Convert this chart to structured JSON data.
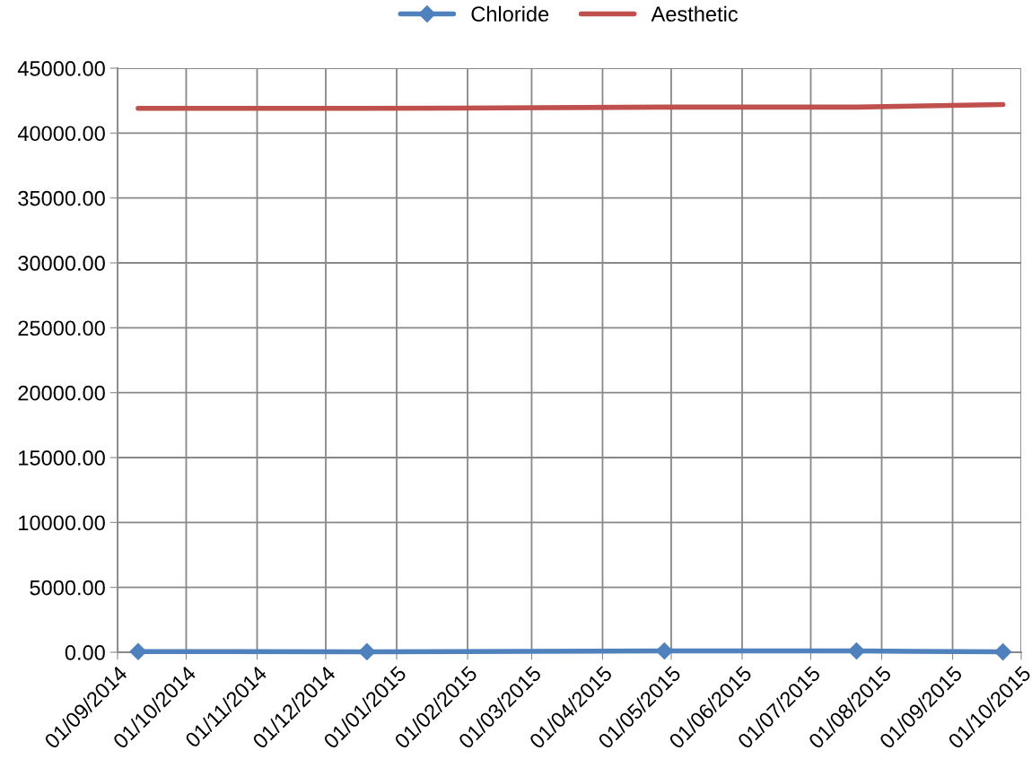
{
  "chart_data": {
    "type": "line",
    "x": [
      "2014-09-10",
      "2014-12-19",
      "2015-04-28",
      "2015-07-21",
      "2015-09-23"
    ],
    "series": [
      {
        "name": "Chloride",
        "color": "#4f81bd",
        "marker": "diamond",
        "values": [
          50,
          40,
          100,
          100,
          30
        ]
      },
      {
        "name": "Aesthetic",
        "color": "#c0504d",
        "marker": "none",
        "values": [
          41900,
          41900,
          42000,
          42000,
          42200
        ]
      }
    ],
    "ylim": [
      0,
      45000
    ],
    "yticks": [
      {
        "value": 0,
        "label": "0.00"
      },
      {
        "value": 5000,
        "label": "5000.00"
      },
      {
        "value": 10000,
        "label": "10000.00"
      },
      {
        "value": 15000,
        "label": "15000.00"
      },
      {
        "value": 20000,
        "label": "20000.00"
      },
      {
        "value": 25000,
        "label": "25000.00"
      },
      {
        "value": 30000,
        "label": "30000.00"
      },
      {
        "value": 35000,
        "label": "35000.00"
      },
      {
        "value": 40000,
        "label": "40000.00"
      },
      {
        "value": 45000,
        "label": "45000.00"
      }
    ],
    "xlim": [
      "2014-09-01",
      "2015-10-01"
    ],
    "xticks": [
      {
        "value": "2014-09-01",
        "label": "01/09/2014"
      },
      {
        "value": "2014-10-01",
        "label": "01/10/2014"
      },
      {
        "value": "2014-11-01",
        "label": "01/11/2014"
      },
      {
        "value": "2014-12-01",
        "label": "01/12/2014"
      },
      {
        "value": "2015-01-01",
        "label": "01/01/2015"
      },
      {
        "value": "2015-02-01",
        "label": "01/02/2015"
      },
      {
        "value": "2015-03-01",
        "label": "01/03/2015"
      },
      {
        "value": "2015-04-01",
        "label": "01/04/2015"
      },
      {
        "value": "2015-05-01",
        "label": "01/05/2015"
      },
      {
        "value": "2015-06-01",
        "label": "01/06/2015"
      },
      {
        "value": "2015-07-01",
        "label": "01/07/2015"
      },
      {
        "value": "2015-08-01",
        "label": "01/08/2015"
      },
      {
        "value": "2015-09-01",
        "label": "01/09/2015"
      },
      {
        "value": "2015-10-01",
        "label": "01/10/2015"
      }
    ],
    "grid": true,
    "legend": "top",
    "line_style": "solid"
  }
}
